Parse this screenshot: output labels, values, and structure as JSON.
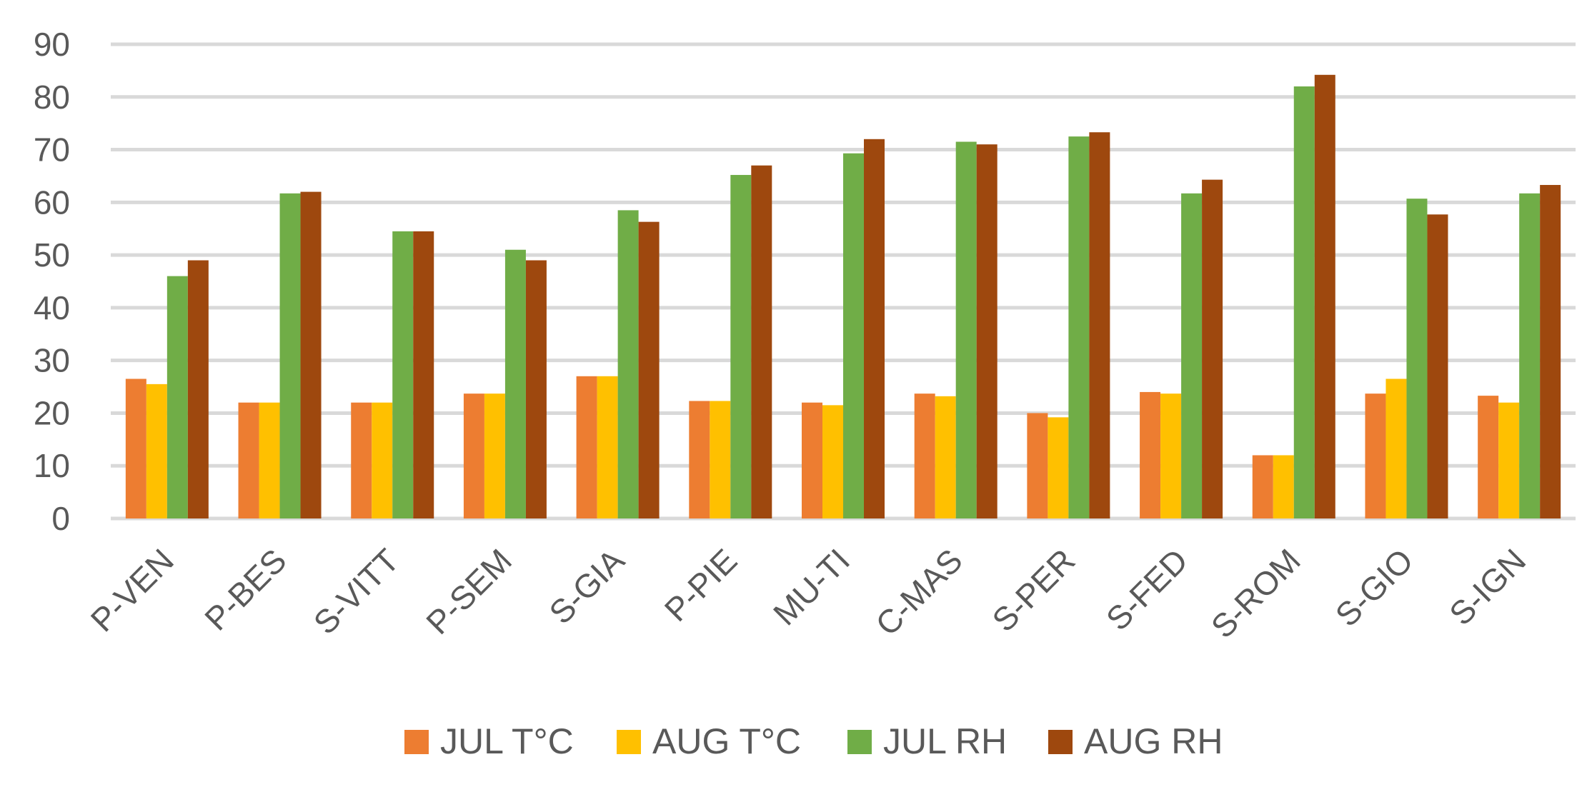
{
  "chart_data": {
    "type": "bar",
    "title": "",
    "xlabel": "",
    "ylabel": "",
    "ylim": [
      0,
      90
    ],
    "yticks": [
      0,
      10,
      20,
      30,
      40,
      50,
      60,
      70,
      80,
      90
    ],
    "grid": true,
    "legend_position": "bottom",
    "categories": [
      "P-VEN",
      "P-BES",
      "S-VITT",
      "P-SEM",
      "S-GIA",
      "P-PIE",
      "MU-TI",
      "C-MAS",
      "S-PER",
      "S-FED",
      "S-ROM",
      "S-GIO",
      "S-IGN"
    ],
    "series": [
      {
        "name": "JUL T°C",
        "color": "#ED7D31",
        "values": [
          26.5,
          22,
          22,
          23.7,
          27,
          22.3,
          22,
          23.7,
          20,
          24,
          12,
          23.7,
          23.3
        ]
      },
      {
        "name": "AUG T°C",
        "color": "#FFC000",
        "values": [
          25.5,
          22,
          22,
          23.7,
          27,
          22.3,
          21.5,
          23.2,
          19.2,
          23.7,
          12,
          26.5,
          22
        ]
      },
      {
        "name": "JUL RH",
        "color": "#70AD47",
        "values": [
          46,
          61.7,
          54.5,
          51,
          58.5,
          65.2,
          69.3,
          71.5,
          72.5,
          61.7,
          82,
          60.7,
          61.7
        ]
      },
      {
        "name": "AUG RH",
        "color": "#9E480E",
        "values": [
          49,
          62,
          54.5,
          49,
          56.3,
          67,
          72,
          71,
          73.3,
          64.3,
          84.2,
          57.7,
          63.3
        ]
      }
    ]
  }
}
